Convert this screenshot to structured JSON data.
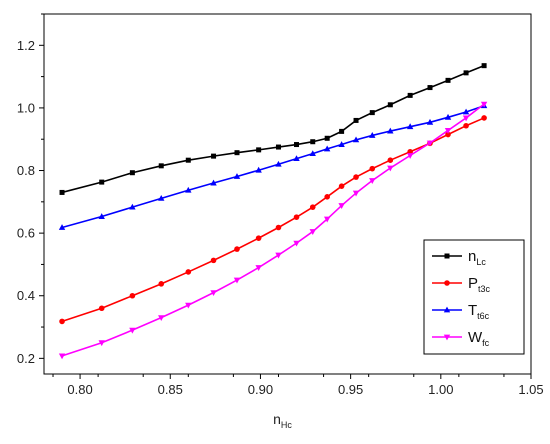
{
  "chart_data": {
    "type": "line",
    "xlabel": {
      "main": "n",
      "sub": "Hc"
    },
    "ylabel": "",
    "xlim": [
      0.78,
      1.05
    ],
    "ylim": [
      0.15,
      1.3
    ],
    "xticks": [
      0.8,
      0.85,
      0.9,
      0.95,
      1.0,
      1.05
    ],
    "xtick_labels": [
      "0.80",
      "0.85",
      "0.90",
      "0.95",
      "1.00",
      "1.05"
    ],
    "yticks": [
      0.2,
      0.4,
      0.6,
      0.8,
      1.0,
      1.2
    ],
    "ytick_labels": [
      "0.2",
      "0.4",
      "0.6",
      "0.8",
      "1.0",
      "1.2"
    ],
    "grid": false,
    "legend_position": "bottom-right",
    "series": [
      {
        "name": "n",
        "name_sub": "Lc",
        "color": "#000000",
        "marker": "square",
        "points": [
          [
            0.79,
            0.73
          ],
          [
            0.812,
            0.763
          ],
          [
            0.829,
            0.793
          ],
          [
            0.845,
            0.815
          ],
          [
            0.86,
            0.833
          ],
          [
            0.874,
            0.846
          ],
          [
            0.887,
            0.857
          ],
          [
            0.899,
            0.866
          ],
          [
            0.91,
            0.875
          ],
          [
            0.92,
            0.883
          ],
          [
            0.929,
            0.892
          ],
          [
            0.937,
            0.903
          ],
          [
            0.945,
            0.925
          ],
          [
            0.953,
            0.96
          ],
          [
            0.962,
            0.985
          ],
          [
            0.972,
            1.01
          ],
          [
            0.983,
            1.04
          ],
          [
            0.994,
            1.065
          ],
          [
            1.004,
            1.088
          ],
          [
            1.014,
            1.112
          ],
          [
            1.024,
            1.135
          ]
        ]
      },
      {
        "name": "P",
        "name_sub": "t3c",
        "color": "#ff0000",
        "marker": "circle",
        "points": [
          [
            0.79,
            0.318
          ],
          [
            0.812,
            0.36
          ],
          [
            0.829,
            0.4
          ],
          [
            0.845,
            0.438
          ],
          [
            0.86,
            0.476
          ],
          [
            0.874,
            0.513
          ],
          [
            0.887,
            0.549
          ],
          [
            0.899,
            0.584
          ],
          [
            0.91,
            0.618
          ],
          [
            0.92,
            0.651
          ],
          [
            0.929,
            0.683
          ],
          [
            0.937,
            0.716
          ],
          [
            0.945,
            0.75
          ],
          [
            0.953,
            0.779
          ],
          [
            0.962,
            0.806
          ],
          [
            0.972,
            0.833
          ],
          [
            0.983,
            0.86
          ],
          [
            0.994,
            0.887
          ],
          [
            1.004,
            0.915
          ],
          [
            1.014,
            0.943
          ],
          [
            1.024,
            0.968
          ]
        ]
      },
      {
        "name": "T",
        "name_sub": "t6c",
        "color": "#0000ff",
        "marker": "triangle",
        "points": [
          [
            0.79,
            0.618
          ],
          [
            0.812,
            0.653
          ],
          [
            0.829,
            0.683
          ],
          [
            0.845,
            0.711
          ],
          [
            0.86,
            0.737
          ],
          [
            0.874,
            0.76
          ],
          [
            0.887,
            0.781
          ],
          [
            0.899,
            0.801
          ],
          [
            0.91,
            0.82
          ],
          [
            0.92,
            0.838
          ],
          [
            0.929,
            0.854
          ],
          [
            0.937,
            0.869
          ],
          [
            0.945,
            0.883
          ],
          [
            0.953,
            0.898
          ],
          [
            0.962,
            0.912
          ],
          [
            0.972,
            0.926
          ],
          [
            0.983,
            0.94
          ],
          [
            0.994,
            0.954
          ],
          [
            1.004,
            0.97
          ],
          [
            1.014,
            0.987
          ],
          [
            1.024,
            1.007
          ]
        ]
      },
      {
        "name": "W",
        "name_sub": "fc",
        "color": "#ff00ff",
        "marker": "triangle-down",
        "points": [
          [
            0.79,
            0.208
          ],
          [
            0.812,
            0.25
          ],
          [
            0.829,
            0.29
          ],
          [
            0.845,
            0.33
          ],
          [
            0.86,
            0.37
          ],
          [
            0.874,
            0.41
          ],
          [
            0.887,
            0.45
          ],
          [
            0.899,
            0.49
          ],
          [
            0.91,
            0.53
          ],
          [
            0.92,
            0.568
          ],
          [
            0.929,
            0.605
          ],
          [
            0.937,
            0.645
          ],
          [
            0.945,
            0.688
          ],
          [
            0.953,
            0.728
          ],
          [
            0.962,
            0.768
          ],
          [
            0.972,
            0.808
          ],
          [
            0.983,
            0.848
          ],
          [
            0.994,
            0.888
          ],
          [
            1.004,
            0.928
          ],
          [
            1.014,
            0.968
          ],
          [
            1.024,
            1.012
          ]
        ]
      }
    ]
  }
}
